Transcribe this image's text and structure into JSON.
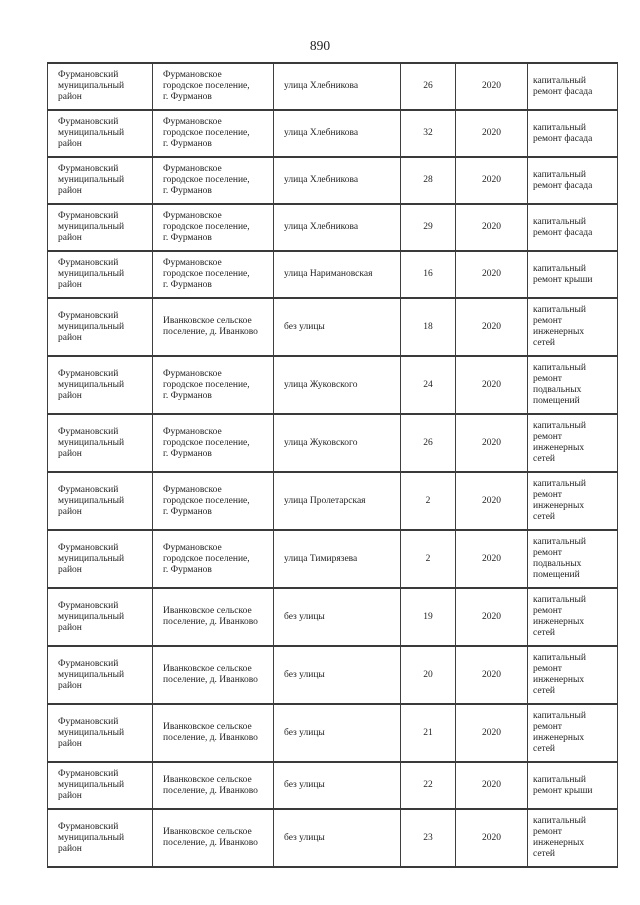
{
  "page": {
    "number": "890"
  },
  "table": {
    "columns": [
      "district",
      "settlement",
      "street",
      "house",
      "year",
      "work"
    ],
    "rows": [
      {
        "district": "Фурмановский\nмуниципальный\nрайон",
        "settlement": "Фурмановское\nгородское поселение,\nг. Фурманов",
        "street": "улица Хлебникова",
        "house": "26",
        "year": "2020",
        "work": "капитальный\nремонт фасада"
      },
      {
        "district": "Фурмановский\nмуниципальный\nрайон",
        "settlement": "Фурмановское\nгородское поселение,\nг. Фурманов",
        "street": "улица Хлебникова",
        "house": "32",
        "year": "2020",
        "work": "капитальный\nремонт фасада"
      },
      {
        "district": "Фурмановский\nмуниципальный\nрайон",
        "settlement": "Фурмановское\nгородское поселение,\nг. Фурманов",
        "street": "улица Хлебникова",
        "house": "28",
        "year": "2020",
        "work": "капитальный\nремонт фасада"
      },
      {
        "district": "Фурмановский\nмуниципальный\nрайон",
        "settlement": "Фурмановское\nгородское поселение,\nг. Фурманов",
        "street": "улица Хлебникова",
        "house": "29",
        "year": "2020",
        "work": "капитальный\nремонт фасада"
      },
      {
        "district": "Фурмановский\nмуниципальный\nрайон",
        "settlement": "Фурмановское\nгородское поселение,\nг. Фурманов",
        "street": "улица Наримановская",
        "house": "16",
        "year": "2020",
        "work": "капитальный\nремонт крыши"
      },
      {
        "district": "Фурмановский\nмуниципальный\nрайон",
        "settlement": "Иванковское сельское\nпоселение, д. Иванково",
        "street": "без улицы",
        "house": "18",
        "year": "2020",
        "work": "капитальный\nремонт\nинженерных\nсетей"
      },
      {
        "district": "Фурмановский\nмуниципальный\nрайон",
        "settlement": "Фурмановское\nгородское поселение,\nг. Фурманов",
        "street": "улица Жуковского",
        "house": "24",
        "year": "2020",
        "work": "капитальный\nремонт\nподвальных\nпомещений"
      },
      {
        "district": "Фурмановский\nмуниципальный\nрайон",
        "settlement": "Фурмановское\nгородское поселение,\nг. Фурманов",
        "street": "улица Жуковского",
        "house": "26",
        "year": "2020",
        "work": "капитальный\nремонт\nинженерных\nсетей"
      },
      {
        "district": "Фурмановский\nмуниципальный\nрайон",
        "settlement": "Фурмановское\nгородское поселение,\nг. Фурманов",
        "street": "улица Пролетарская",
        "house": "2",
        "year": "2020",
        "work": "капитальный\nремонт\nинженерных\nсетей"
      },
      {
        "district": "Фурмановский\nмуниципальный\nрайон",
        "settlement": "Фурмановское\nгородское поселение,\nг. Фурманов",
        "street": "улица Тимирязева",
        "house": "2",
        "year": "2020",
        "work": "капитальный\nремонт\nподвальных\nпомещений"
      },
      {
        "district": "Фурмановский\nмуниципальный\nрайон",
        "settlement": "Иванковское сельское\nпоселение, д. Иванково",
        "street": "без улицы",
        "house": "19",
        "year": "2020",
        "work": "капитальный\nремонт\nинженерных\nсетей"
      },
      {
        "district": "Фурмановский\nмуниципальный\nрайон",
        "settlement": "Иванковское сельское\nпоселение, д. Иванково",
        "street": "без улицы",
        "house": "20",
        "year": "2020",
        "work": "капитальный\nремонт\nинженерных\nсетей"
      },
      {
        "district": "Фурмановский\nмуниципальный\nрайон",
        "settlement": "Иванковское сельское\nпоселение, д. Иванково",
        "street": "без улицы",
        "house": "21",
        "year": "2020",
        "work": "капитальный\nремонт\nинженерных\nсетей"
      },
      {
        "district": "Фурмановский\nмуниципальный\nрайон",
        "settlement": "Иванковское сельское\nпоселение, д. Иванково",
        "street": "без улицы",
        "house": "22",
        "year": "2020",
        "work": "капитальный\nремонт крыши"
      },
      {
        "district": "Фурмановский\nмуниципальный\nрайон",
        "settlement": "Иванковское сельское\nпоселение, д. Иванково",
        "street": "без улицы",
        "house": "23",
        "year": "2020",
        "work": "капитальный\nремонт\nинженерных\nсетей"
      }
    ]
  }
}
